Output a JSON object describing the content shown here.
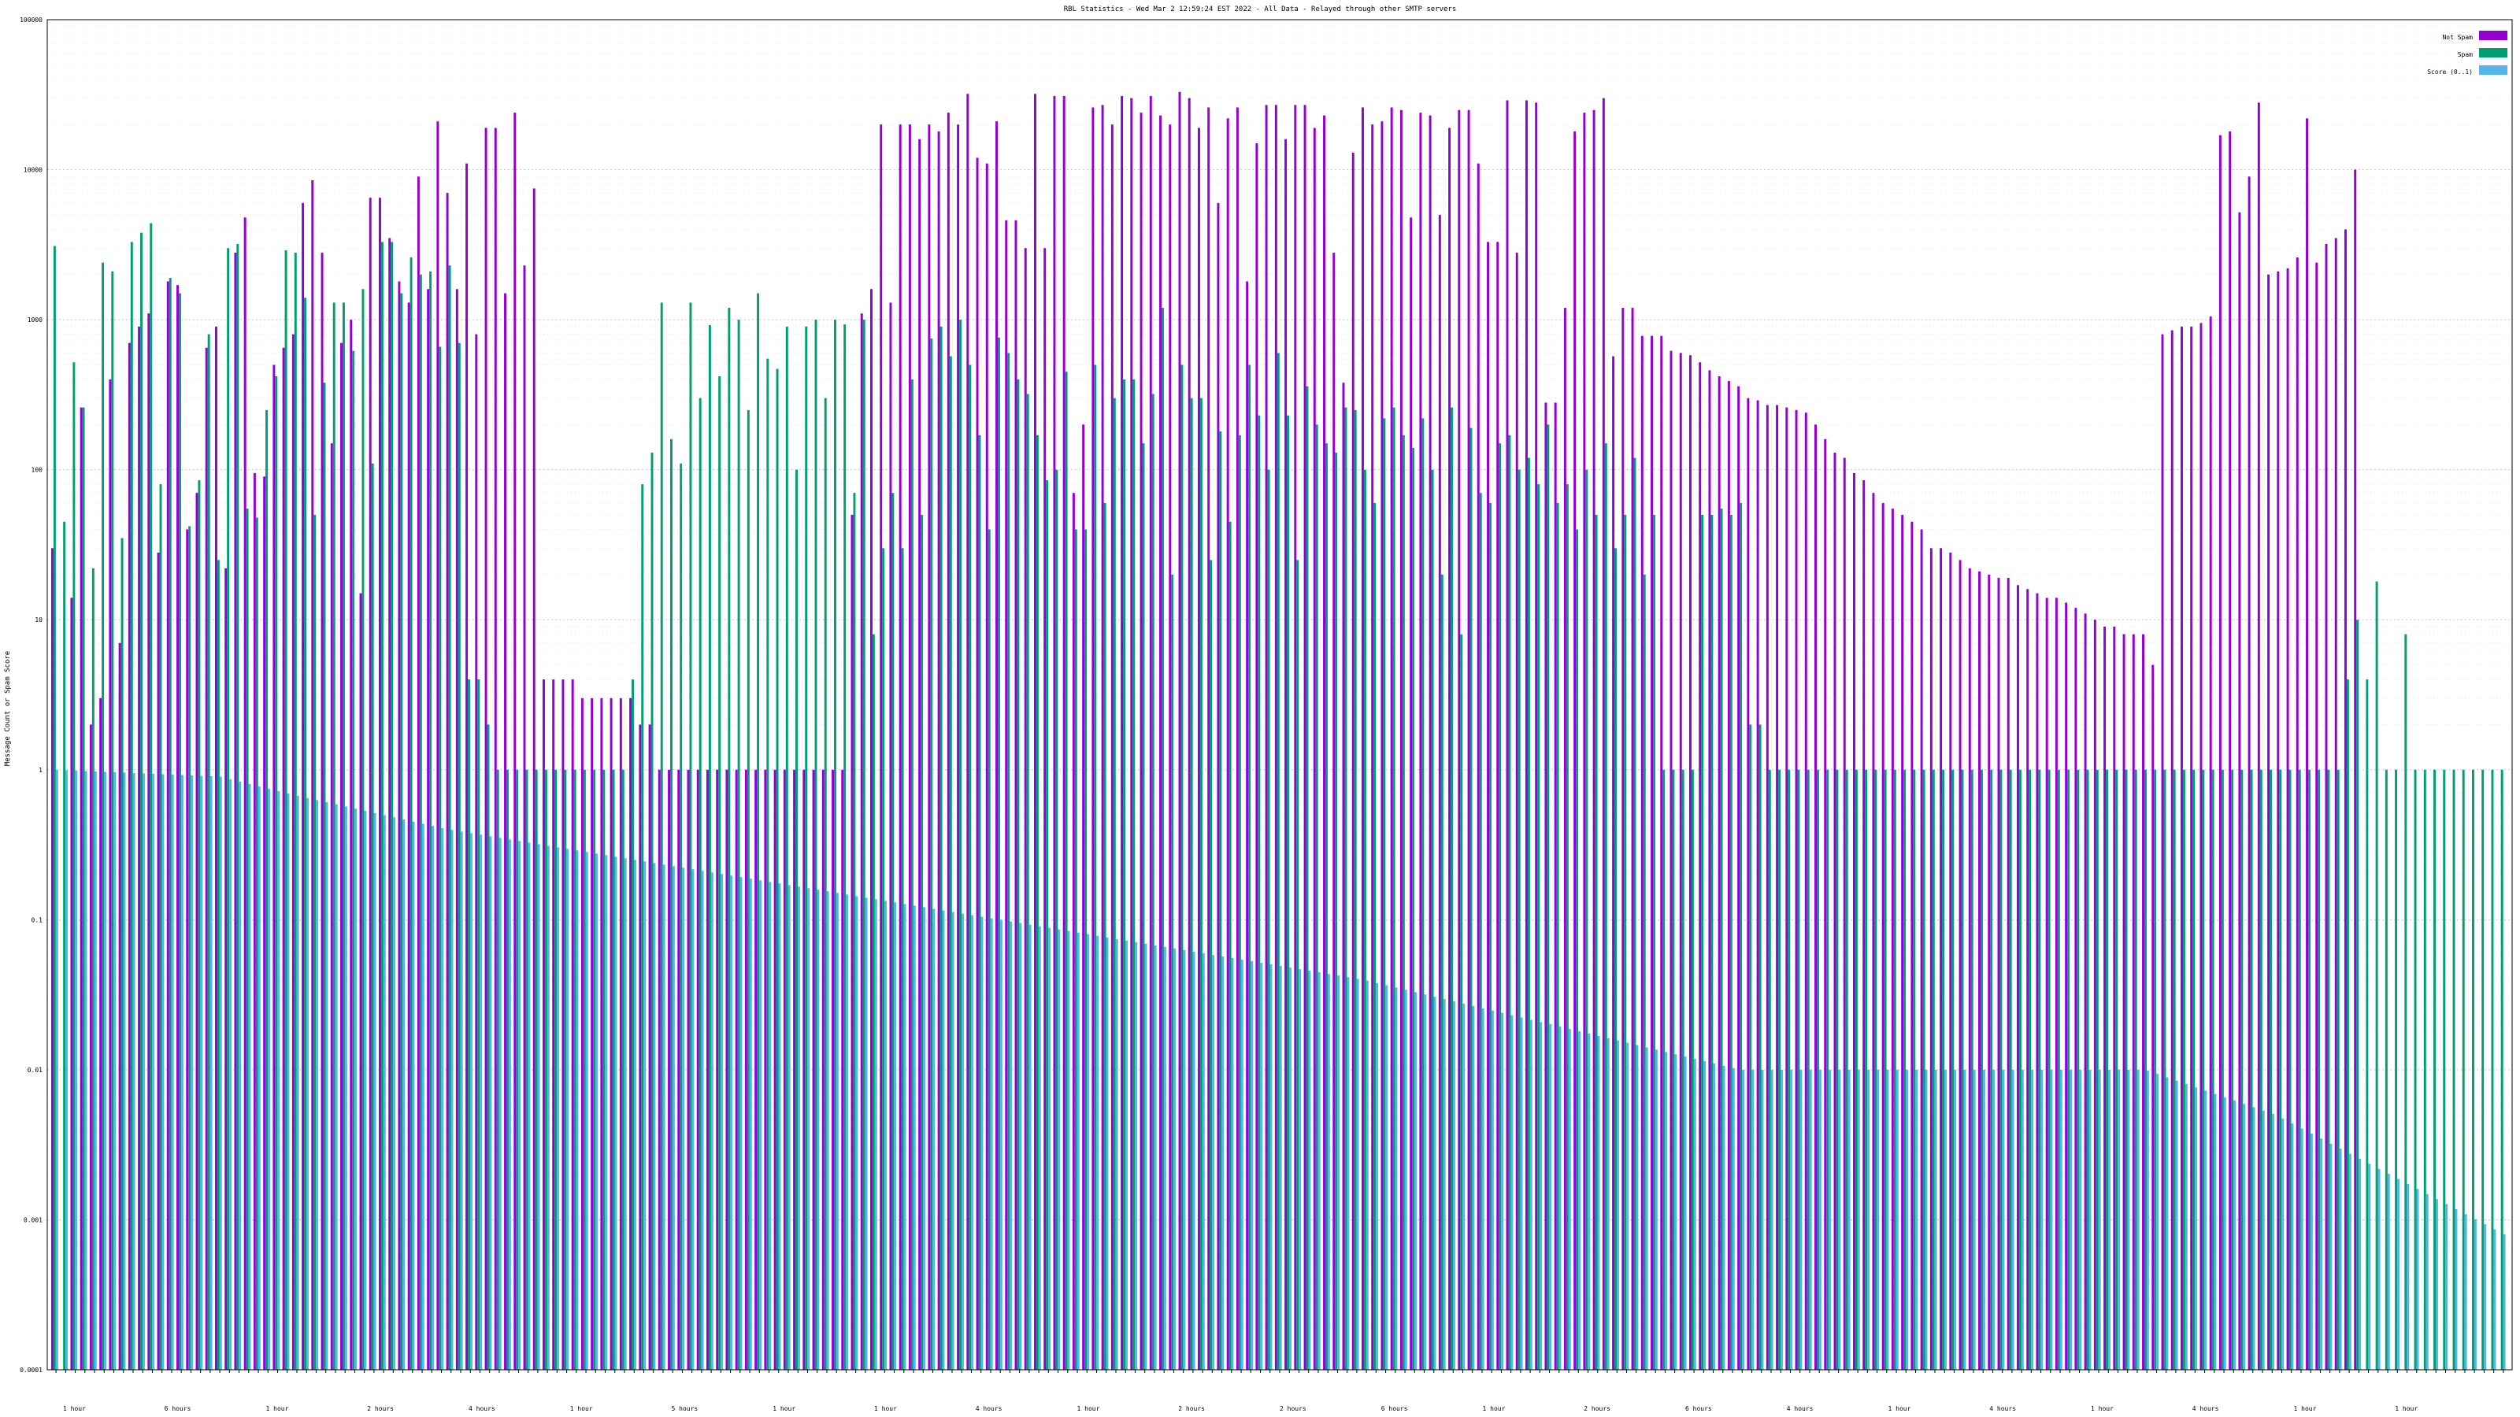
{
  "chart_data": {
    "type": "bar",
    "title": "RBL Statistics - Wed Mar  2 12:59:24 EST 2022 - All Data - Relayed through other SMTP servers",
    "ylabel": "Message Count or Spam Score",
    "xlabel": "",
    "yscale": "log",
    "ylim": [
      0.0001,
      100000
    ],
    "yticks": [
      "0.0001",
      "0.001",
      "0.01",
      "0.1",
      "1",
      "10",
      "100",
      "1000",
      "10000",
      "100000"
    ],
    "grid": true,
    "legend_position": "top-right",
    "colors": {
      "not_spam": "#9400d3",
      "spam": "#009e73",
      "score": "#56b4e9"
    },
    "x_group_labels": [
      "1 hour",
      "6 hours",
      "1 hour",
      "2 hours",
      "4 hours",
      "1 hour",
      "5 hours",
      "1 hour",
      "1 hour",
      "4 hours",
      "1 hour",
      "2 hours",
      "2 hours",
      "6 hours",
      "1 hour",
      "2 hours",
      "6 hours",
      "4 hours",
      "1 hour",
      "4 hours",
      "1 hour",
      "4 hours",
      "1 hour",
      "1 hour"
    ],
    "series": [
      {
        "name": "Not Spam",
        "values": [
          30,
          0,
          14,
          260,
          2,
          3,
          400,
          7,
          700,
          900,
          1100,
          28,
          1800,
          1700,
          40,
          70,
          650,
          900,
          22,
          2800,
          4800,
          95,
          90,
          500,
          650,
          800,
          6000,
          8500,
          2800,
          150,
          700,
          1000,
          15,
          6500,
          6500,
          3500,
          1800,
          1300,
          9000,
          1600,
          21000,
          7000,
          1600,
          11000,
          800,
          19000,
          19000,
          1500,
          24000,
          2300,
          7500,
          4,
          4,
          4,
          4,
          3,
          3,
          3,
          3,
          3,
          3,
          2,
          2,
          1,
          1,
          1,
          1,
          1,
          1,
          1,
          1,
          1,
          1,
          1,
          1,
          1,
          1,
          1,
          1,
          1,
          1,
          1,
          1,
          50,
          1100,
          1600,
          20000,
          1300,
          20000,
          20000,
          16000,
          20000,
          18000,
          24000,
          20000,
          32000,
          12000,
          11000,
          21000,
          4600,
          4600,
          3000,
          32000,
          3000,
          31000,
          31000,
          70,
          200,
          26000,
          27000,
          20000,
          31000,
          30000,
          24000,
          31000,
          23000,
          20000,
          33000,
          30000,
          19000,
          26000,
          6000,
          22000,
          26000,
          1800,
          15000,
          27000,
          27000,
          16000,
          27000,
          27000,
          19000,
          23000,
          2800,
          380,
          13000,
          26000,
          20000,
          21000,
          26000,
          25000,
          4800,
          24000,
          23000,
          5000,
          19000,
          25000,
          25000,
          11000,
          3300,
          3300,
          29000,
          2800,
          29000,
          28000,
          280,
          280,
          1200,
          18000,
          24000,
          25000,
          30000,
          570,
          1200,
          1200,
          780,
          780,
          780,
          620,
          600,
          580,
          520,
          460,
          420,
          390,
          360,
          300,
          290,
          270,
          270,
          260,
          250,
          240,
          200,
          160,
          130,
          120,
          95,
          85,
          70,
          60,
          55,
          50,
          45,
          40,
          30,
          30,
          28,
          25,
          22,
          21,
          20,
          19,
          19,
          17,
          16,
          15,
          14,
          14,
          13,
          12,
          11,
          10,
          9,
          9,
          8,
          8,
          8,
          5,
          800,
          850,
          900,
          900,
          950,
          1050,
          17000,
          18000,
          5200,
          9000,
          28000,
          2000,
          2100,
          2200,
          2600,
          22000,
          2400,
          3200,
          3500,
          4000,
          10000
        ]
      },
      {
        "name": "Spam",
        "values": [
          3100,
          45,
          520,
          260,
          22,
          2400,
          2100,
          35,
          3300,
          3800,
          4400,
          80,
          1900,
          1500,
          42,
          85,
          800,
          25,
          3000,
          3200,
          55,
          48,
          250,
          420,
          2900,
          2800,
          1400,
          50,
          380,
          1300,
          1300,
          620,
          1600,
          110,
          3300,
          3300,
          1500,
          2600,
          2000,
          2100,
          660,
          2300,
          700,
          4,
          4,
          2,
          1,
          1,
          1,
          1,
          1,
          1,
          1,
          1,
          1,
          1,
          1,
          1,
          1,
          1,
          4,
          80,
          130,
          1300,
          160,
          110,
          1300,
          300,
          920,
          420,
          1200,
          1000,
          250,
          1500,
          550,
          470,
          900,
          100,
          900,
          1000,
          300,
          1000,
          930,
          70,
          1000,
          8,
          30,
          70,
          30,
          400,
          50,
          750,
          900,
          570,
          1000,
          500,
          170,
          40,
          760,
          600,
          400,
          320,
          170,
          85,
          100,
          450,
          40,
          40,
          500,
          60,
          300,
          400,
          400,
          150,
          320,
          1200,
          20,
          500,
          300,
          300,
          25,
          180,
          45,
          170,
          500,
          230,
          100,
          600,
          230,
          25,
          360,
          200,
          150,
          130,
          260,
          250,
          100,
          60,
          220,
          260,
          170,
          140,
          220,
          100,
          20,
          260,
          8,
          190,
          70,
          60,
          150,
          170,
          100,
          120,
          80,
          200,
          60,
          80,
          40,
          100,
          50,
          150,
          30,
          50,
          120,
          20,
          50,
          1,
          1,
          1,
          1,
          50,
          50,
          55,
          50,
          60,
          2,
          2,
          1,
          1,
          1,
          1,
          1,
          1,
          1,
          1,
          1,
          1,
          1,
          1,
          1,
          1,
          1,
          1,
          1,
          1,
          1,
          1,
          1,
          1,
          1,
          1,
          1,
          1,
          1,
          1,
          1,
          1,
          1,
          1,
          1,
          1,
          1,
          1,
          1,
          1,
          1,
          1,
          1,
          1,
          1,
          1,
          1,
          1,
          1,
          1,
          1,
          1,
          1,
          1,
          1,
          1,
          1,
          1,
          1,
          1,
          1,
          1,
          4,
          10,
          4,
          18,
          1,
          1,
          8,
          1,
          1,
          1,
          1,
          1,
          1,
          1,
          1,
          1,
          1
        ]
      },
      {
        "name": "Score (0..1)",
        "values_start": 1.0,
        "values_end": 0.0008,
        "anchors": [
          [
            0,
            1.0
          ],
          [
            25,
            0.9
          ],
          [
            35,
            0.7
          ],
          [
            60,
            0.4
          ],
          [
            120,
            0.15
          ],
          [
            200,
            0.04
          ],
          [
            258,
            0.01
          ],
          [
            320,
            0.01
          ],
          [
            340,
            0.005
          ],
          [
            375,
            0.0008
          ]
        ]
      }
    ]
  },
  "legend": [
    {
      "label": "Not Spam",
      "color": "#9400d3"
    },
    {
      "label": "Spam",
      "color": "#009e73"
    },
    {
      "label": "Score (0..1)",
      "color": "#56b4e9"
    }
  ]
}
